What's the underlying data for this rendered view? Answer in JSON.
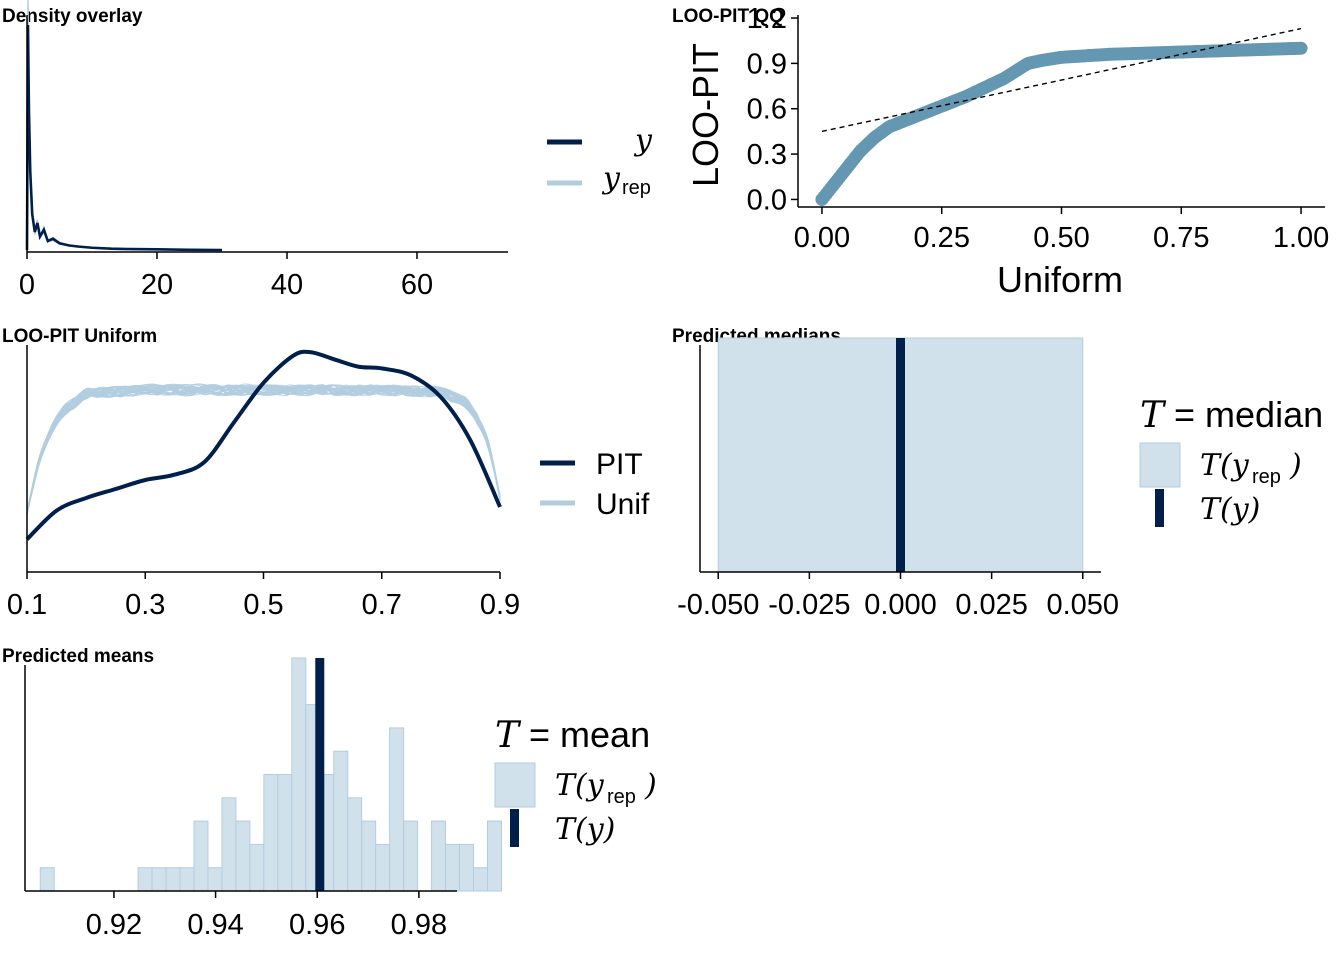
{
  "colors": {
    "dark": "#011f4b",
    "light": "#b3cde0",
    "lightFill": "#d1e1ec",
    "lightStroke": "#b3cde0",
    "qq": "#6497b1",
    "axis": "#000000"
  },
  "chart_data": [
    {
      "id": "density",
      "type": "line",
      "title": "Density overlay",
      "xlim": [
        0,
        74
      ],
      "ylim": [
        0,
        1
      ],
      "xticks": [
        0,
        20,
        40,
        60
      ],
      "yaxis_visible": false,
      "legend": {
        "placement": "right",
        "entries": [
          {
            "label": "y",
            "sub": "",
            "color_key": "dark"
          },
          {
            "label": "y",
            "sub": "rep",
            "color_key": "light"
          }
        ]
      },
      "series": [
        {
          "name": "y",
          "x": [
            0,
            0.15,
            0.3,
            0.5,
            0.8,
            1.2,
            1.6,
            2.0,
            2.6,
            3.2,
            4.0,
            5.0,
            6.5,
            8.0,
            10,
            13,
            16,
            20,
            25,
            30
          ],
          "y": [
            0.0,
            1.0,
            0.62,
            0.35,
            0.16,
            0.08,
            0.12,
            0.06,
            0.09,
            0.04,
            0.05,
            0.03,
            0.02,
            0.015,
            0.01,
            0.006,
            0.004,
            0.003,
            0.001,
            0.0
          ]
        }
      ]
    },
    {
      "id": "qq",
      "type": "scatter",
      "title": "LOO-PIT QQ",
      "xlabel": "Uniform",
      "ylabel": "LOO-PIT",
      "xlim": [
        -0.05,
        1.05
      ],
      "ylim": [
        -0.05,
        1.22
      ],
      "xticks": [
        0.0,
        0.25,
        0.5,
        0.75,
        1.0
      ],
      "xtick_labels": [
        "0.00",
        "0.25",
        "0.50",
        "0.75",
        "1.00"
      ],
      "yticks": [
        0.0,
        0.3,
        0.6,
        0.9,
        1.2
      ],
      "ytick_labels": [
        "0.0",
        "0.3",
        "0.6",
        "0.9",
        "1.2"
      ],
      "reference_line": {
        "x": [
          0,
          1
        ],
        "y": [
          0.45,
          1.13
        ]
      },
      "curve": {
        "x": [
          0,
          0.02,
          0.05,
          0.08,
          0.11,
          0.14,
          0.18,
          0.22,
          0.26,
          0.3,
          0.34,
          0.38,
          0.41,
          0.43,
          0.46,
          0.5,
          0.55,
          0.6,
          0.65,
          0.7,
          0.75,
          0.8,
          0.85,
          0.9,
          0.95,
          1.0
        ],
        "y": [
          0.0,
          0.08,
          0.2,
          0.32,
          0.41,
          0.48,
          0.53,
          0.58,
          0.63,
          0.68,
          0.74,
          0.8,
          0.86,
          0.9,
          0.92,
          0.94,
          0.95,
          0.96,
          0.965,
          0.97,
          0.975,
          0.98,
          0.985,
          0.99,
          0.995,
          1.0
        ]
      }
    },
    {
      "id": "pit",
      "type": "line",
      "title": "LOO-PIT Uniform",
      "xlim": [
        0.1,
        0.9
      ],
      "ylim": [
        0,
        1.25
      ],
      "xticks": [
        0.1,
        0.3,
        0.5,
        0.7,
        0.9
      ],
      "yaxis_visible": false,
      "legend": {
        "placement": "right",
        "entries": [
          {
            "label": "PIT",
            "color_key": "dark"
          },
          {
            "label": "Unif",
            "color_key": "light"
          }
        ]
      },
      "pit_curve": {
        "x": [
          0.1,
          0.15,
          0.2,
          0.25,
          0.3,
          0.35,
          0.4,
          0.45,
          0.5,
          0.55,
          0.58,
          0.62,
          0.66,
          0.7,
          0.75,
          0.8,
          0.85,
          0.9
        ],
        "y": [
          0.17,
          0.33,
          0.4,
          0.45,
          0.5,
          0.53,
          0.6,
          0.82,
          1.04,
          1.19,
          1.21,
          1.17,
          1.13,
          1.12,
          1.08,
          0.96,
          0.72,
          0.35
        ]
      },
      "unif_base": {
        "x": [
          0.1,
          0.12,
          0.15,
          0.2,
          0.3,
          0.4,
          0.5,
          0.6,
          0.7,
          0.8,
          0.85,
          0.88,
          0.9
        ],
        "y": [
          0.32,
          0.6,
          0.85,
          0.98,
          1.0,
          1.0,
          1.0,
          1.0,
          1.0,
          0.99,
          0.92,
          0.7,
          0.4
        ]
      },
      "unif_draws": 40
    },
    {
      "id": "medians",
      "type": "bar",
      "title": "Predicted medians",
      "xlim": [
        -0.055,
        0.055
      ],
      "xticks": [
        -0.05,
        -0.025,
        0.0,
        0.025,
        0.05
      ],
      "xtick_labels": [
        "-0.050",
        "-0.025",
        "0.000",
        "0.025",
        "0.050"
      ],
      "yaxis_visible": false,
      "bins": [
        {
          "x0": -0.05,
          "x1": 0.05,
          "value": 1.0
        }
      ],
      "ylim": [
        0,
        1.0
      ],
      "observed": 0.0,
      "legend": {
        "placement": "right",
        "title_stat": "median",
        "rep_label": "T(y",
        "rep_sub": "rep",
        "obs_label": "T(y)"
      }
    },
    {
      "id": "means",
      "type": "bar",
      "title": "Predicted means",
      "xlim": [
        0.9025,
        0.9875
      ],
      "xticks": [
        0.92,
        0.94,
        0.96,
        0.98
      ],
      "xtick_labels": [
        "0.92",
        "0.94",
        "0.96",
        "0.98"
      ],
      "yaxis_visible": false,
      "ylim": [
        0,
        10
      ],
      "bin_start": 0.9055,
      "bin_width": 0.00275,
      "counts": [
        1,
        0,
        0,
        0,
        0,
        0,
        0,
        1,
        1,
        1,
        1,
        3,
        1,
        4,
        3,
        2,
        5,
        5,
        10,
        8,
        5,
        6,
        4,
        3,
        2,
        7,
        3,
        0,
        3,
        2,
        2,
        1,
        3
      ],
      "observed": 0.9605,
      "legend": {
        "placement": "right",
        "title_stat": "mean",
        "rep_label": "T(y",
        "rep_sub": "rep",
        "obs_label": "T(y)"
      }
    }
  ]
}
